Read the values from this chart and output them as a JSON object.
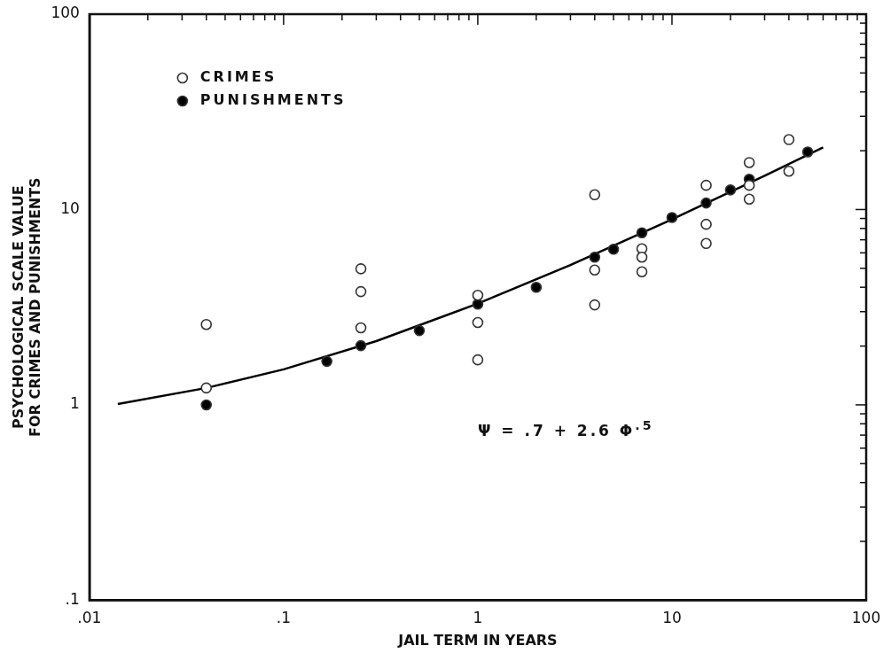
{
  "chart_data": {
    "type": "scatter",
    "xlabel": "JAIL TERM IN YEARS",
    "ylabel": "PSYCHOLOGICAL SCALE VALUE\nFOR CRIMES AND PUNISHMENTS",
    "log": "xy",
    "grid": false,
    "legend": "top left",
    "marker": "circle",
    "xlim": [
      0.01,
      100
    ],
    "ylim": [
      0.1,
      100
    ],
    "xticks": [
      {
        "value": 0.01,
        "label": ".01"
      },
      {
        "value": 0.02,
        "label": null
      },
      {
        "value": 0.03,
        "label": null
      },
      {
        "value": 0.04,
        "label": null
      },
      {
        "value": 0.05,
        "label": null
      },
      {
        "value": 0.06,
        "label": null
      },
      {
        "value": 0.07,
        "label": null
      },
      {
        "value": 0.08,
        "label": null
      },
      {
        "value": 0.09,
        "label": null
      },
      {
        "value": 0.1,
        "label": ".1"
      },
      {
        "value": 0.2,
        "label": null
      },
      {
        "value": 0.3,
        "label": null
      },
      {
        "value": 0.4,
        "label": null
      },
      {
        "value": 0.5,
        "label": null
      },
      {
        "value": 0.6,
        "label": null
      },
      {
        "value": 0.7,
        "label": null
      },
      {
        "value": 0.8,
        "label": null
      },
      {
        "value": 0.9,
        "label": null
      },
      1,
      {
        "value": 2,
        "label": null
      },
      {
        "value": 3,
        "label": null
      },
      {
        "value": 4,
        "label": null
      },
      {
        "value": 5,
        "label": null
      },
      {
        "value": 6,
        "label": null
      },
      {
        "value": 7,
        "label": null
      },
      {
        "value": 8,
        "label": null
      },
      {
        "value": 9,
        "label": null
      },
      10,
      {
        "value": 20,
        "label": null
      },
      {
        "value": 30,
        "label": null
      },
      {
        "value": 40,
        "label": null
      },
      {
        "value": 50,
        "label": null
      },
      {
        "value": 60,
        "label": null
      },
      {
        "value": 70,
        "label": null
      },
      {
        "value": 80,
        "label": null
      },
      {
        "value": 90,
        "label": null
      },
      100
    ],
    "yticks": [
      {
        "value": 0.1,
        "label": ".1"
      },
      {
        "value": 0.2,
        "label": null
      },
      {
        "value": 0.3,
        "label": null
      },
      {
        "value": 0.4,
        "label": null
      },
      {
        "value": 0.5,
        "label": null
      },
      {
        "value": 0.6,
        "label": null
      },
      {
        "value": 0.7,
        "label": null
      },
      {
        "value": 0.8,
        "label": null
      },
      {
        "value": 0.9,
        "label": null
      },
      1,
      {
        "value": 2,
        "label": null
      },
      {
        "value": 3,
        "label": null
      },
      {
        "value": 4,
        "label": null
      },
      {
        "value": 5,
        "label": null
      },
      {
        "value": 6,
        "label": null
      },
      {
        "value": 7,
        "label": null
      },
      {
        "value": 8,
        "label": null
      },
      {
        "value": 9,
        "label": null
      },
      10,
      {
        "value": 20,
        "label": null
      },
      {
        "value": 30,
        "label": null
      },
      {
        "value": 40,
        "label": null
      },
      {
        "value": 50,
        "label": null
      },
      {
        "value": 60,
        "label": null
      },
      {
        "value": 70,
        "label": null
      },
      {
        "value": 80,
        "label": null
      },
      {
        "value": 90,
        "label": null
      },
      100
    ],
    "series": [
      {
        "name": "CRIMES",
        "color": "#ffffff",
        "x": [
          0.04,
          0.04,
          0.25,
          0.25,
          0.25,
          1,
          1,
          1,
          4,
          4,
          4,
          7,
          7,
          7,
          15,
          15,
          15,
          25,
          25,
          25,
          40,
          40
        ],
        "values": [
          2.58,
          1.22,
          4.97,
          3.8,
          2.48,
          3.64,
          2.64,
          1.7,
          11.9,
          4.9,
          3.25,
          6.3,
          5.7,
          4.8,
          13.3,
          8.4,
          6.7,
          17.4,
          13.3,
          11.3,
          22.8,
          15.7
        ]
      },
      {
        "name": "PUNISHMENTS",
        "color": "#000000",
        "x": [
          0.04,
          0.167,
          0.25,
          0.5,
          1,
          2,
          4,
          5,
          7,
          10,
          15,
          20,
          25,
          50
        ],
        "values": [
          1.0,
          1.67,
          2.01,
          2.4,
          3.28,
          4.0,
          5.7,
          6.26,
          7.6,
          9.1,
          10.8,
          12.6,
          14.3,
          19.7
        ]
      },
      {
        "type": "line",
        "color": "#000000",
        "marker": "none",
        "x": [
          0.014,
          0.04,
          0.1,
          0.3,
          1,
          3,
          10,
          30,
          60
        ],
        "values": [
          1.01,
          1.22,
          1.52,
          2.12,
          3.3,
          5.2,
          8.9,
          14.9,
          20.8
        ]
      }
    ],
    "annotations": [
      "Ψ = .7 + 2.6 Φ$^{.5}$"
    ]
  }
}
